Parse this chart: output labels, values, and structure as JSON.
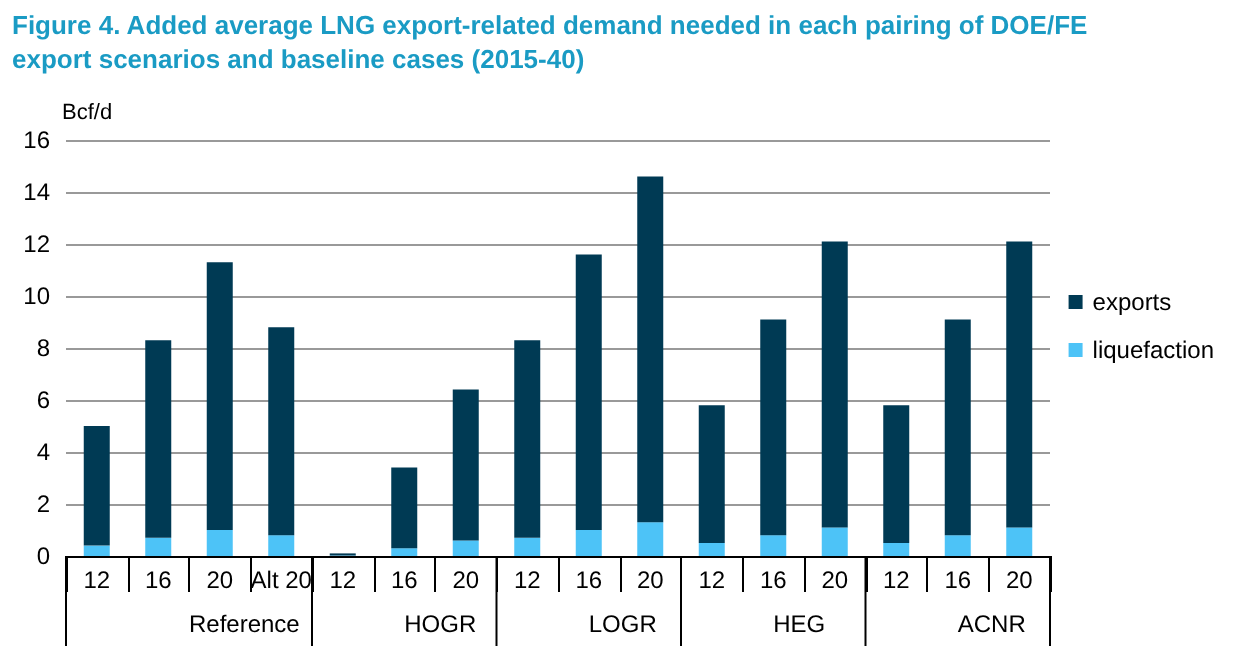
{
  "chart_data": {
    "type": "bar",
    "title": "Figure 4.  Added average LNG export-related demand needed in each pairing of DOE/FE export scenarios and baseline cases (2015-40)",
    "ylabel": "Bcf/d",
    "categories": [
      "12",
      "16",
      "20",
      "Alt 20",
      "12",
      "16",
      "20",
      "12",
      "16",
      "20",
      "12",
      "16",
      "20",
      "12",
      "16",
      "20"
    ],
    "stacked": true,
    "series": [
      {
        "name": "liquefaction",
        "color": "#4dc3f7",
        "values": [
          0.4,
          0.7,
          1.0,
          0.8,
          0.02,
          0.3,
          0.6,
          0.7,
          1.0,
          1.3,
          0.5,
          0.8,
          1.1,
          0.5,
          0.8,
          1.1
        ]
      },
      {
        "name": "exports",
        "color": "#003a54",
        "values": [
          4.6,
          7.6,
          10.3,
          8.0,
          0.08,
          3.1,
          5.8,
          7.6,
          10.6,
          13.3,
          5.3,
          8.3,
          11.0,
          5.3,
          8.3,
          11.0
        ]
      }
    ],
    "annotations": [
      "Reference",
      "HOGR",
      "LOGR",
      "HEG",
      "ACNR"
    ],
    "ylim": [
      0,
      16
    ],
    "yticks": [
      0,
      2,
      4,
      6,
      8,
      10,
      12,
      14,
      16
    ],
    "grid": "y",
    "legend": "right"
  }
}
